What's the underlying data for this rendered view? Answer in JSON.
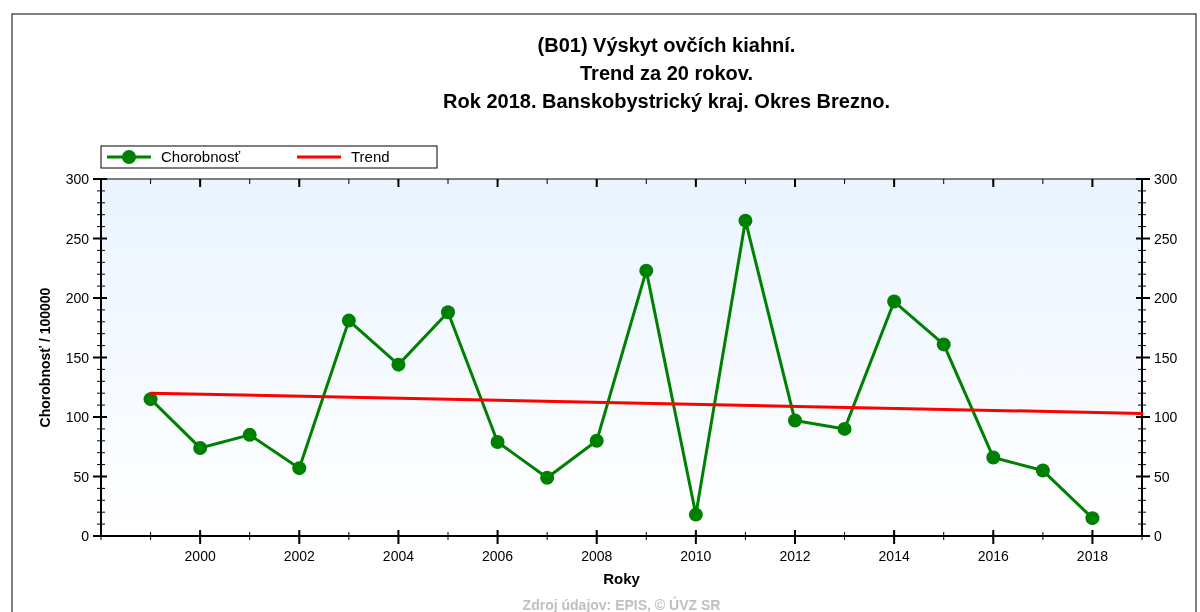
{
  "chart_data": {
    "type": "line",
    "title": "(B01) Výskyt ovčích kiahní.\nTrend za 20 rokov.\nRok 2018. Banskobystrický kraj. Okres Brezno.",
    "xlabel": "Roky",
    "ylabel": "Chorobnosť / 100000",
    "annotations": [
      "Zdroj údajov: EPIS, © ÚVZ SR"
    ],
    "xlim": [
      1998,
      2019
    ],
    "xticks": [
      2000,
      2002,
      2004,
      2006,
      2008,
      2010,
      2012,
      2014,
      2016,
      2018
    ],
    "ylim": [
      0,
      300
    ],
    "yticks": [
      0,
      50,
      100,
      150,
      200,
      250,
      300
    ],
    "y2lim": [
      0,
      300
    ],
    "y2ticks": [
      0,
      50,
      100,
      150,
      200,
      250,
      300
    ],
    "grid": false,
    "legend": "top left",
    "series": [
      {
        "name": "Chorobnosť",
        "color": "#008000",
        "marker": "circle",
        "x": [
          1999,
          2000,
          2001,
          2002,
          2003,
          2004,
          2005,
          2006,
          2007,
          2008,
          2009,
          2010,
          2011,
          2012,
          2013,
          2014,
          2015,
          2016,
          2017,
          2018
        ],
        "values": [
          115,
          74,
          85,
          57,
          181,
          144,
          188,
          79,
          49,
          80,
          223,
          18,
          265,
          97,
          90,
          197,
          161,
          66,
          55,
          15
        ]
      },
      {
        "name": "Trend",
        "color": "#ff0000",
        "marker": "none",
        "x": [
          1999,
          2019
        ],
        "values": [
          120,
          103
        ]
      }
    ]
  }
}
